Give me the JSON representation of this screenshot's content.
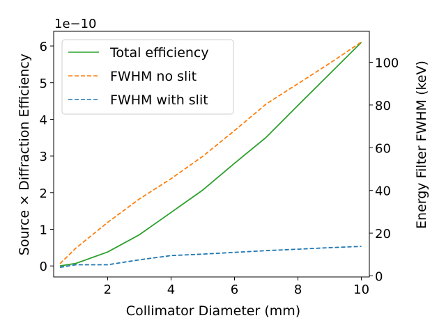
{
  "chart_data": {
    "type": "line",
    "xlabel": "Collimator Diameter (mm)",
    "ylabel_left": "Source × Diffraction Efficiency",
    "ylabel_right": "Energy Filter FWHM (keV)",
    "left_offset_label": "1e−10",
    "xlim": [
      0.3,
      10.25
    ],
    "ylim_left": [
      -0.3,
      6.4
    ],
    "ylim_right": [
      -0.5,
      114.5
    ],
    "x_ticks": [
      2,
      4,
      6,
      8,
      10
    ],
    "y_left_ticks": [
      0,
      1,
      2,
      3,
      4,
      5,
      6
    ],
    "y_right_ticks": [
      0,
      20,
      40,
      60,
      80,
      100
    ],
    "legend_position": "upper-left",
    "series": [
      {
        "name": "Total efficiency",
        "axis": "left",
        "color": "#2ca02c",
        "style": "solid",
        "x": [
          0.5,
          1,
          2,
          3,
          4,
          5,
          6,
          7,
          8,
          9,
          10
        ],
        "y": [
          0.0,
          0.07,
          0.38,
          0.85,
          1.46,
          2.07,
          2.8,
          3.51,
          4.38,
          5.24,
          6.1
        ]
      },
      {
        "name": "FWHM no slit",
        "axis": "right",
        "color": "#ff7f0e",
        "style": "dashed",
        "x": [
          0.5,
          1,
          2,
          3,
          4,
          5,
          6,
          7,
          8,
          9,
          10
        ],
        "y": [
          5.7,
          13.0,
          25.0,
          36.0,
          45.5,
          56.0,
          68.0,
          80.5,
          90.0,
          99.5,
          109.5
        ]
      },
      {
        "name": "FWHM with slit",
        "axis": "right",
        "color": "#1f77b4",
        "style": "dashed",
        "x": [
          0.5,
          1,
          2,
          3,
          4,
          5,
          6,
          7,
          8,
          9,
          10
        ],
        "y": [
          4.0,
          5.2,
          5.2,
          7.5,
          9.5,
          10.2,
          11.0,
          11.8,
          12.5,
          13.2,
          13.8
        ]
      }
    ]
  }
}
